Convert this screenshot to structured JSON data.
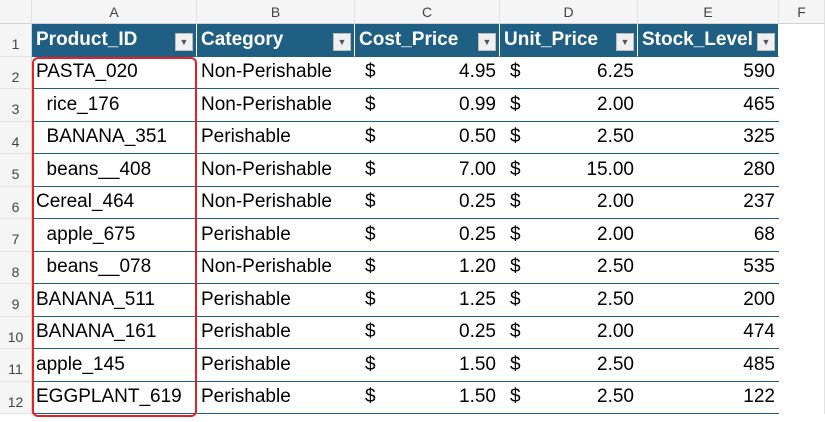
{
  "columns": [
    "A",
    "B",
    "C",
    "D",
    "E",
    "F"
  ],
  "headers": [
    "Product_ID",
    "Category",
    "Cost_Price",
    "Unit_Price",
    "Stock_Level"
  ],
  "currency_symbol": "$",
  "rows": [
    {
      "n": "2",
      "id": "PASTA_020",
      "cat": "Non-Perishable",
      "cost": "4.95",
      "unit": "6.25",
      "stock": "590"
    },
    {
      "n": "3",
      "id": "  rice_176",
      "cat": "Non-Perishable",
      "cost": "0.99",
      "unit": "2.00",
      "stock": "465"
    },
    {
      "n": "4",
      "id": "  BANANA_351",
      "cat": "Perishable",
      "cost": "0.50",
      "unit": "2.50",
      "stock": "325"
    },
    {
      "n": "5",
      "id": "  beans__408",
      "cat": "Non-Perishable",
      "cost": "7.00",
      "unit": "15.00",
      "stock": "280"
    },
    {
      "n": "6",
      "id": "Cereal_464",
      "cat": "Non-Perishable",
      "cost": "0.25",
      "unit": "2.00",
      "stock": "237"
    },
    {
      "n": "7",
      "id": "  apple_675",
      "cat": "Perishable",
      "cost": "0.25",
      "unit": "2.00",
      "stock": "68"
    },
    {
      "n": "8",
      "id": "  beans__078",
      "cat": "Non-Perishable",
      "cost": "1.20",
      "unit": "2.50",
      "stock": "535"
    },
    {
      "n": "9",
      "id": "BANANA_511",
      "cat": "Perishable",
      "cost": "1.25",
      "unit": "2.50",
      "stock": "200"
    },
    {
      "n": "10",
      "id": "BANANA_161",
      "cat": "Perishable",
      "cost": "0.25",
      "unit": "2.00",
      "stock": "474"
    },
    {
      "n": "11",
      "id": "apple_145",
      "cat": "Perishable",
      "cost": "1.50",
      "unit": "2.50",
      "stock": "485"
    },
    {
      "n": "12",
      "id": "EGGPLANT_619",
      "cat": "Perishable",
      "cost": "1.50",
      "unit": "2.50",
      "stock": "122"
    }
  ],
  "colors": {
    "header_fill": "#1f5f84",
    "selection": "#e5202a"
  }
}
